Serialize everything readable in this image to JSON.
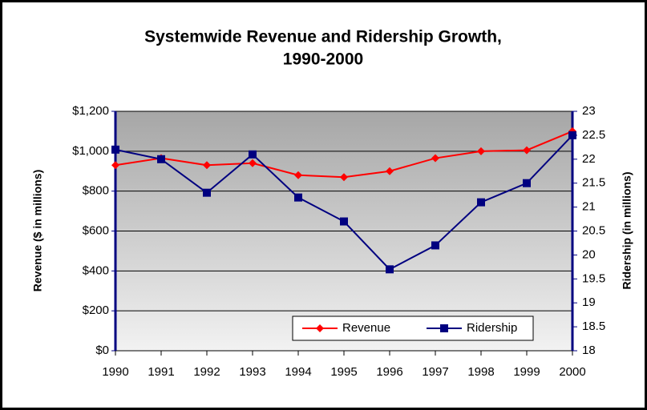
{
  "chart_data": {
    "type": "line",
    "title": [
      "Systemwide Revenue and Ridership Growth,",
      "1990-2000"
    ],
    "y_label": "Revenue ($ in millions)",
    "y2_label": "Ridership (in millions)",
    "categories": [
      "1990",
      "1991",
      "1992",
      "1993",
      "1994",
      "1995",
      "1996",
      "1997",
      "1998",
      "1999",
      "2000"
    ],
    "series": [
      {
        "name": "Revenue",
        "color": "#ff0000",
        "marker": "diamond",
        "values": [
          930,
          965,
          930,
          940,
          880,
          870,
          900,
          965,
          1000,
          1005,
          1100
        ]
      },
      {
        "name": "Ridership",
        "color": "#000080",
        "marker": "square",
        "axis": "y2",
        "values": [
          22.2,
          22.0,
          21.3,
          22.1,
          21.2,
          20.7,
          19.7,
          20.2,
          21.1,
          21.5,
          22.5
        ]
      }
    ],
    "ylim": [
      0,
      1200
    ],
    "yticks": [
      {
        "value": 0,
        "label": "$0"
      },
      {
        "value": 200,
        "label": "$200"
      },
      {
        "value": 400,
        "label": "$400"
      },
      {
        "value": 600,
        "label": "$600"
      },
      {
        "value": 800,
        "label": "$800"
      },
      {
        "value": 1000,
        "label": "$1,000"
      },
      {
        "value": 1200,
        "label": "$1,200"
      }
    ],
    "y2lim": [
      18,
      23
    ],
    "y2ticks": [
      18,
      18.5,
      19,
      19.5,
      20,
      20.5,
      21,
      21.5,
      22,
      22.5,
      23
    ],
    "grid": true,
    "legend": "bottom-right"
  }
}
